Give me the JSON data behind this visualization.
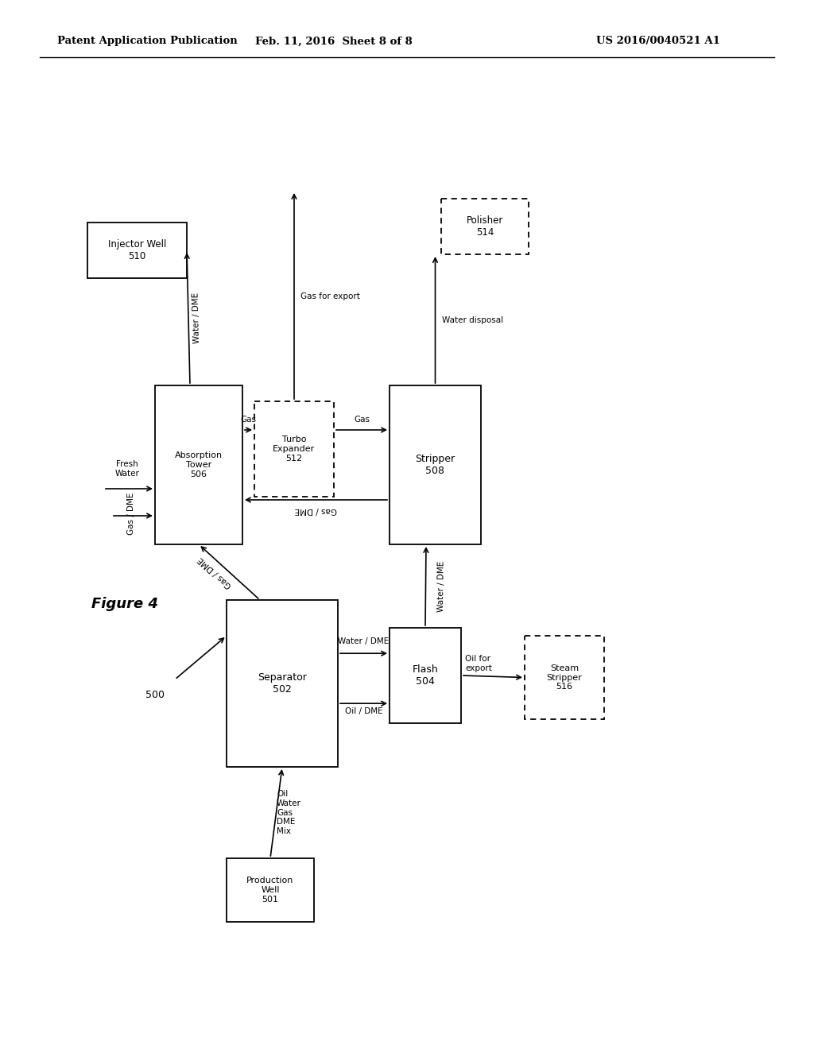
{
  "header_left": "Patent Application Publication",
  "header_mid": "Feb. 11, 2016  Sheet 8 of 8",
  "header_right": "US 2016/0040521 A1",
  "figure_label": "Figure 4",
  "system_label": "500",
  "bg_color": "#ffffff"
}
